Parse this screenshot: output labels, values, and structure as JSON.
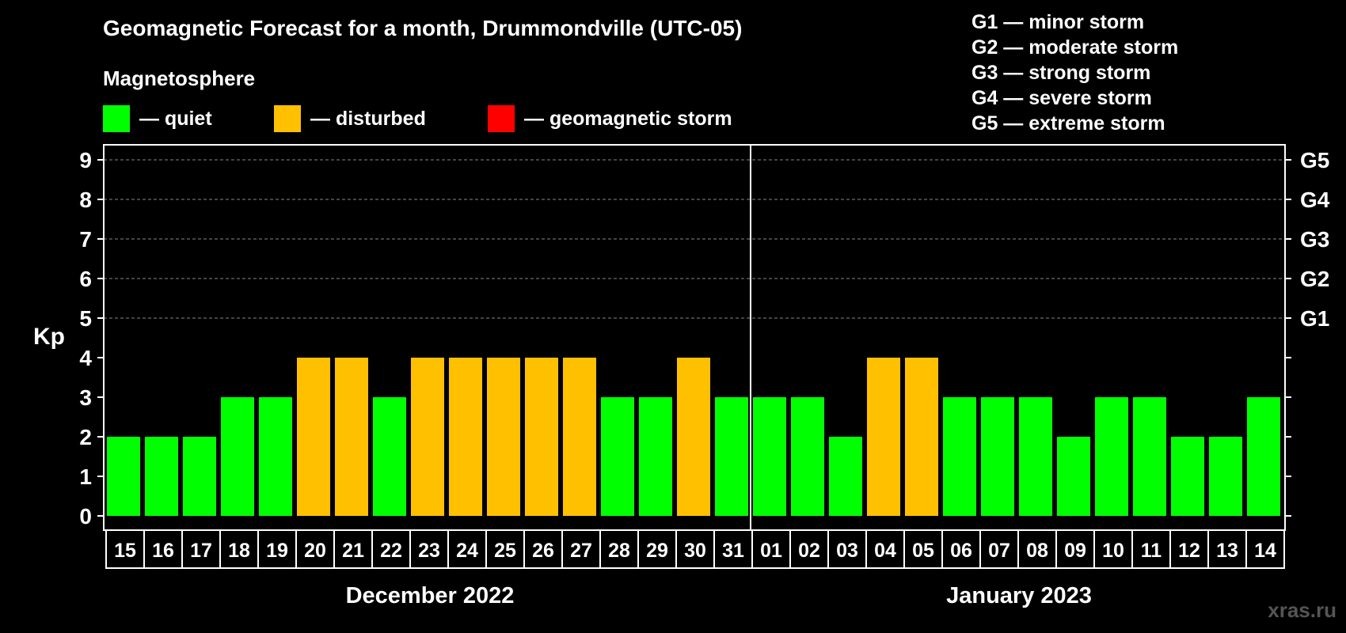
{
  "title": "Geomagnetic Forecast for a month, Drummondville (UTC-05)",
  "legend": {
    "heading": "Magnetosphere",
    "items": [
      {
        "label": "— quiet",
        "color": "#00ff00"
      },
      {
        "label": "— disturbed",
        "color": "#ffc000"
      },
      {
        "label": "— geomagnetic storm",
        "color": "#ff0000"
      }
    ]
  },
  "storm_levels": [
    "G1 — minor storm",
    "G2 — moderate storm",
    "G3 — strong storm",
    "G4 — severe storm",
    "G5 — extreme storm"
  ],
  "watermark": "xras.ru",
  "chart_data": {
    "type": "bar",
    "ylabel": "Kp",
    "ylim": [
      0,
      9
    ],
    "yticks": [
      0,
      1,
      2,
      3,
      4,
      5,
      6,
      7,
      8,
      9
    ],
    "right_ticks": [
      {
        "value": 5,
        "label": "G1"
      },
      {
        "value": 6,
        "label": "G2"
      },
      {
        "value": 7,
        "label": "G3"
      },
      {
        "value": 8,
        "label": "G4"
      },
      {
        "value": 9,
        "label": "G5"
      }
    ],
    "grid": "dashed horizontal at 5-9",
    "months": [
      {
        "name": "December 2022",
        "days": [
          "15",
          "16",
          "17",
          "18",
          "19",
          "20",
          "21",
          "22",
          "23",
          "24",
          "25",
          "26",
          "27",
          "28",
          "29",
          "30",
          "31"
        ]
      },
      {
        "name": "January 2023",
        "days": [
          "01",
          "02",
          "03",
          "04",
          "05",
          "06",
          "07",
          "08",
          "09",
          "10",
          "11",
          "12",
          "13",
          "14"
        ]
      }
    ],
    "categories": [
      "15",
      "16",
      "17",
      "18",
      "19",
      "20",
      "21",
      "22",
      "23",
      "24",
      "25",
      "26",
      "27",
      "28",
      "29",
      "30",
      "31",
      "01",
      "02",
      "03",
      "04",
      "05",
      "06",
      "07",
      "08",
      "09",
      "10",
      "11",
      "12",
      "13",
      "14"
    ],
    "values": [
      2,
      2,
      2,
      3,
      3,
      4,
      4,
      3,
      4,
      4,
      4,
      4,
      4,
      3,
      3,
      4,
      3,
      3,
      3,
      2,
      4,
      4,
      3,
      3,
      3,
      2,
      3,
      3,
      2,
      2,
      3
    ],
    "colors": {
      "quiet": "#00ff00",
      "disturbed": "#ffc000",
      "storm": "#ff0000"
    }
  }
}
